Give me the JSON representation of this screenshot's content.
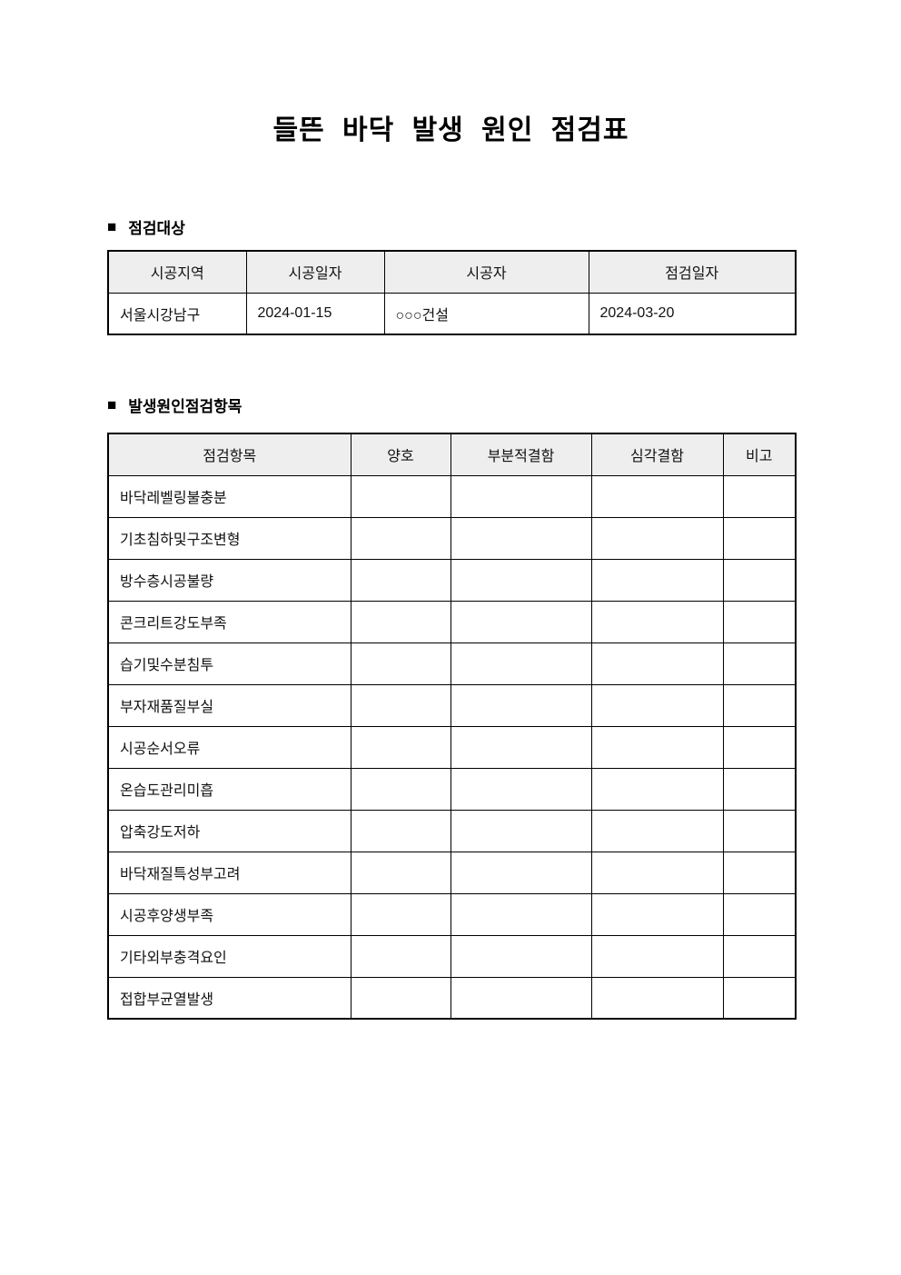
{
  "title": "들뜬 바닥 발생 원인 점검표",
  "sections": {
    "target": {
      "bullet": "■",
      "heading": "점검대상"
    },
    "causes": {
      "bullet": "■",
      "heading": "발생원인점검항목"
    }
  },
  "target_table": {
    "headers": [
      "시공지역",
      "시공일자",
      "시공자",
      "점검일자"
    ],
    "row": [
      "서울시강남구",
      "2024-01-15",
      "○○○건설",
      "2024-03-20"
    ]
  },
  "checklist_table": {
    "headers": [
      "점검항목",
      "양호",
      "부분적결함",
      "심각결함",
      "비고"
    ],
    "check_cell_names": [
      "good-cell",
      "partial-defect-cell",
      "serious-defect-cell",
      "remarks-cell"
    ],
    "items": [
      "바닥레벨링불충분",
      "기초침하및구조변형",
      "방수층시공불량",
      "콘크리트강도부족",
      "습기및수분침투",
      "부자재품질부실",
      "시공순서오류",
      "온습도관리미흡",
      "압축강도저하",
      "바닥재질특성부고려",
      "시공후양생부족",
      "기타외부충격요인",
      "접합부균열발생"
    ]
  },
  "colors": {
    "header_bg": "#eeeeee",
    "border": "#000000",
    "text": "#111111"
  }
}
